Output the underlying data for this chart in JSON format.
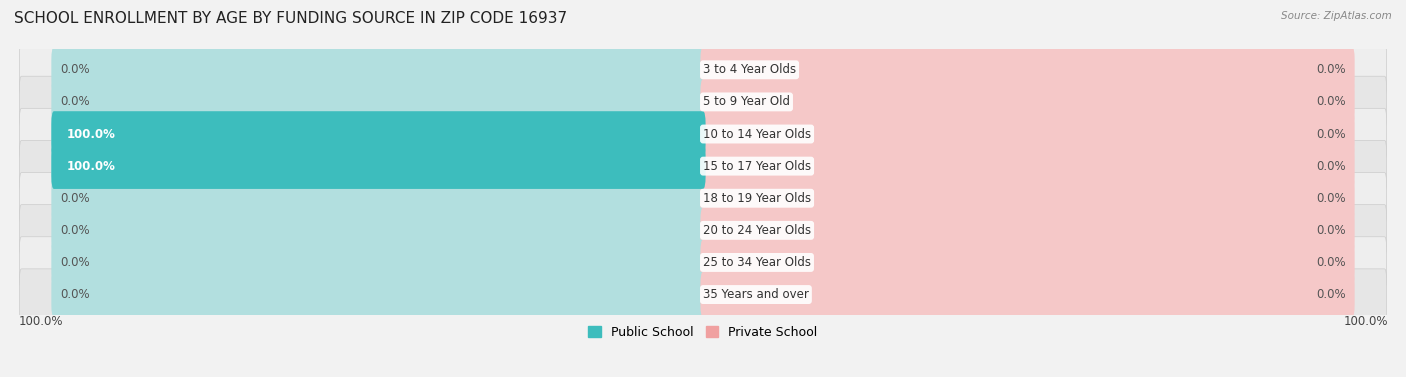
{
  "title": "SCHOOL ENROLLMENT BY AGE BY FUNDING SOURCE IN ZIP CODE 16937",
  "source": "Source: ZipAtlas.com",
  "categories": [
    "3 to 4 Year Olds",
    "5 to 9 Year Old",
    "10 to 14 Year Olds",
    "15 to 17 Year Olds",
    "18 to 19 Year Olds",
    "20 to 24 Year Olds",
    "25 to 34 Year Olds",
    "35 Years and over"
  ],
  "public_values": [
    0.0,
    0.0,
    100.0,
    100.0,
    0.0,
    0.0,
    0.0,
    0.0
  ],
  "private_values": [
    0.0,
    0.0,
    0.0,
    0.0,
    0.0,
    0.0,
    0.0,
    0.0
  ],
  "public_color": "#3dbdbd",
  "private_color": "#f0a0a0",
  "bg_light": "#f0f0f0",
  "bg_dark": "#e4e4e4",
  "label_white": "#ffffff",
  "label_dark": "#555555",
  "x_max": 100.0,
  "figsize": [
    14.06,
    3.77
  ],
  "dpi": 100,
  "title_fontsize": 11,
  "bar_fontsize": 8.5,
  "legend_fontsize": 9,
  "category_fontsize": 8.5
}
